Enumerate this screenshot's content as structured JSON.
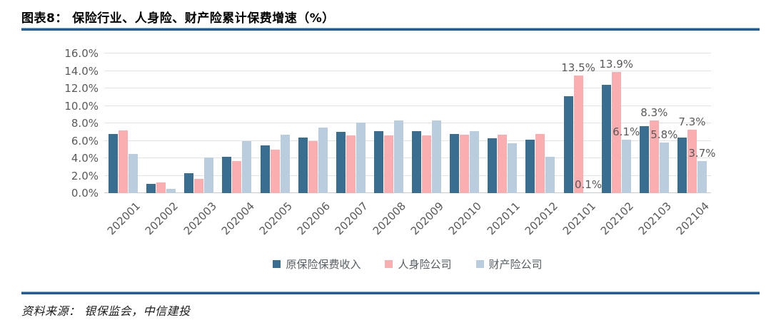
{
  "header": {
    "title": "图表8： 保险行业、人身险、财产险累计保费增速（%）"
  },
  "footer": {
    "source": "资料来源： 银保监会，中信建投"
  },
  "colors": {
    "divider_blue": "#1e5c9b",
    "gridline": "#e2e2e2",
    "axis_text": "#595959",
    "series_blue": "#3a6e91",
    "series_pink": "#fbaeb0",
    "series_lightblue": "#b9cdde"
  },
  "chart_data": {
    "type": "bar",
    "title": "保险行业、人身险、财产险累计保费增速（%）",
    "categories": [
      "202001",
      "202002",
      "202003",
      "202004",
      "202005",
      "202006",
      "202007",
      "202008",
      "202009",
      "202010",
      "202011",
      "202012",
      "202101",
      "202102",
      "202103",
      "202104"
    ],
    "series": [
      {
        "name": "原保险保费收入",
        "color": "#3a6e91",
        "values": [
          6.8,
          1.1,
          2.3,
          4.2,
          5.5,
          6.4,
          7.0,
          7.1,
          7.1,
          6.8,
          6.3,
          6.1,
          11.1,
          12.4,
          7.7,
          6.4
        ],
        "value_labels": []
      },
      {
        "name": "人身险公司",
        "color": "#fbaeb0",
        "values": [
          7.2,
          1.2,
          1.6,
          3.7,
          5.0,
          6.0,
          6.6,
          6.6,
          6.6,
          6.7,
          6.7,
          6.8,
          13.5,
          13.9,
          8.3,
          7.3
        ],
        "value_labels": [
          {
            "index": 12,
            "text": "13.5%"
          },
          {
            "index": 13,
            "text": "13.9%"
          },
          {
            "index": 14,
            "text": "8.3%"
          },
          {
            "index": 15,
            "text": "7.3%"
          }
        ]
      },
      {
        "name": "财产险公司",
        "color": "#b9cdde",
        "values": [
          4.5,
          0.5,
          4.1,
          6.0,
          6.7,
          7.5,
          8.1,
          8.3,
          8.3,
          7.1,
          5.7,
          4.2,
          0.1,
          6.1,
          5.8,
          3.7
        ],
        "value_labels": [
          {
            "index": 12,
            "text": "0.1%"
          },
          {
            "index": 13,
            "text": "6.1%"
          },
          {
            "index": 14,
            "text": "5.8%"
          },
          {
            "index": 15,
            "text": "3.7%"
          }
        ]
      }
    ],
    "ylim": [
      0,
      16
    ],
    "ytick_step": 2,
    "ytick_labels": [
      "0.0%",
      "2.0%",
      "4.0%",
      "6.0%",
      "8.0%",
      "10.0%",
      "12.0%",
      "14.0%",
      "16.0%"
    ],
    "grid": true,
    "legend_position": "bottom-center"
  }
}
